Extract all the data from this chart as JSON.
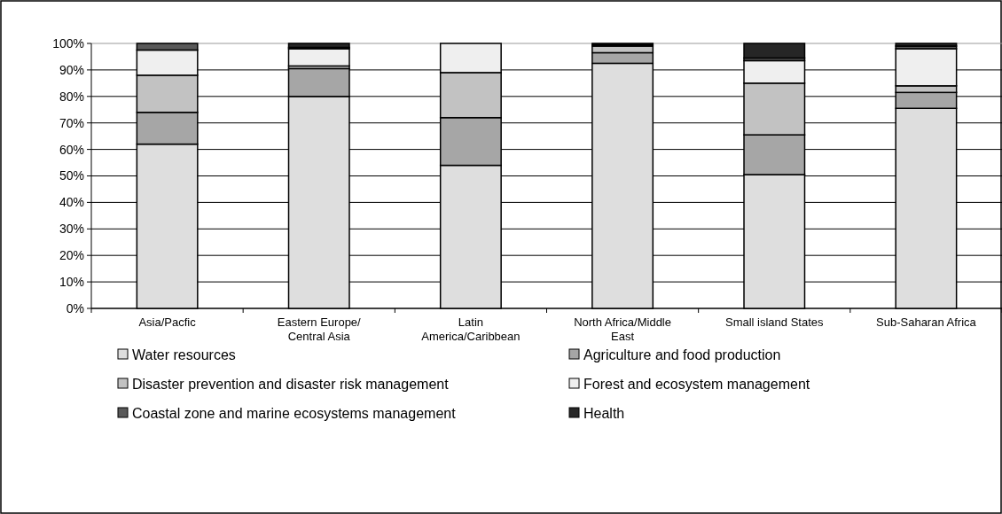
{
  "chart_data": {
    "type": "bar",
    "stacked": true,
    "categories": [
      "Asia/Pacfic",
      "Eastern Europe/ Central Asia",
      "Latin America/Caribbean",
      "North Africa/Middle East",
      "Small island States",
      "Sub-Saharan Africa"
    ],
    "series": [
      {
        "name": "Water resources",
        "color": "#dedede",
        "values": [
          62,
          80,
          54,
          92.5,
          50.5,
          75.5
        ]
      },
      {
        "name": "Agriculture and food production",
        "color": "#a6a6a6",
        "values": [
          12,
          10.5,
          18,
          4,
          15,
          6
        ]
      },
      {
        "name": "Disaster prevention and disaster risk management",
        "color": "#c2c2c2",
        "values": [
          14,
          1,
          17,
          2.5,
          19.5,
          2.5
        ]
      },
      {
        "name": "Forest and ecosystem management",
        "color": "#efefef",
        "values": [
          9.5,
          6.5,
          11,
          0.5,
          8.5,
          14
        ]
      },
      {
        "name": "Coastal zone and marine ecosystems management",
        "color": "#595959",
        "values": [
          2.5,
          0.5,
          0,
          0,
          1,
          1
        ]
      },
      {
        "name": "Health",
        "color": "#262626",
        "values": [
          0,
          1.5,
          0,
          0.5,
          5.5,
          1
        ]
      }
    ],
    "ylim": [
      0,
      100
    ],
    "yticks": [
      {
        "value": 0,
        "label": "0%"
      },
      {
        "value": 10,
        "label": "10%"
      },
      {
        "value": 20,
        "label": "20%"
      },
      {
        "value": 30,
        "label": "30%"
      },
      {
        "value": 40,
        "label": "40%"
      },
      {
        "value": 50,
        "label": "50%"
      },
      {
        "value": 60,
        "label": "60%"
      },
      {
        "value": 70,
        "label": "70%"
      },
      {
        "value": 80,
        "label": "80%"
      },
      {
        "value": 90,
        "label": "90%"
      },
      {
        "value": 100,
        "label": "100%"
      }
    ],
    "grid": "y",
    "legend": "bottom"
  }
}
